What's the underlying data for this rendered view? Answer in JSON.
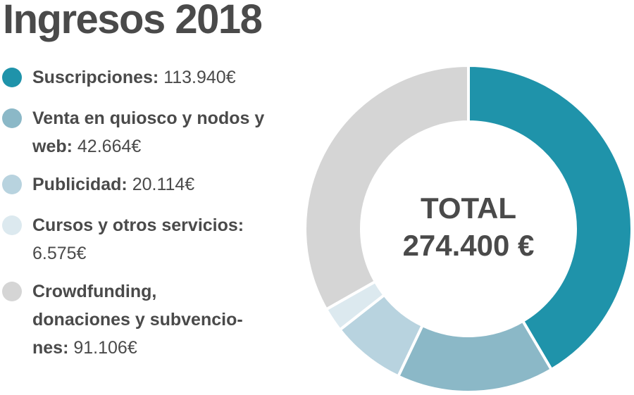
{
  "title": "Ingresos 2018",
  "center": {
    "label": "TOTAL",
    "value": "274.400 €"
  },
  "legend": [
    {
      "label": "Suscripciones:",
      "value": "113.940€",
      "color": "#1f93aa"
    },
    {
      "label": "Venta en quiosco y nodos y web:",
      "value": "42.664€",
      "color": "#8bb8c7"
    },
    {
      "label": "Publicidad:",
      "value": "20.114€",
      "color": "#b8d3df"
    },
    {
      "label": "Cursos y otros servicios:",
      "value": "6.575€",
      "color": "#dce9ef"
    },
    {
      "label": "Crowdfunding, donaciones y subvencio-nes:",
      "value": "91.106€",
      "color": "#d5d5d5"
    }
  ],
  "chart_data": {
    "type": "pie",
    "title": "Ingresos 2018",
    "categories": [
      "Suscripciones",
      "Venta en quiosco y nodos y web",
      "Publicidad",
      "Cursos y otros servicios",
      "Crowdfunding, donaciones y subvenciones"
    ],
    "values": [
      113940,
      42664,
      20114,
      6575,
      91106
    ],
    "colors": [
      "#1f93aa",
      "#8bb8c7",
      "#b8d3df",
      "#dce9ef",
      "#d5d5d5"
    ],
    "total": 274400
  }
}
